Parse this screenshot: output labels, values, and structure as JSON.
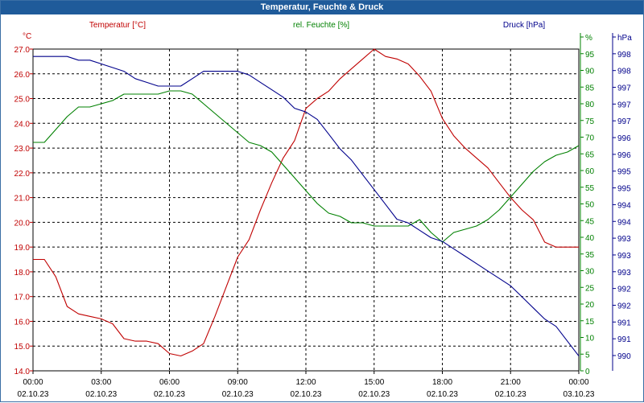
{
  "window": {
    "title": "Temperatur, Feuchte & Druck"
  },
  "colors": {
    "temperature": "#c00000",
    "humidity": "#008000",
    "pressure": "#00008b",
    "grid": "#000000",
    "title_bg": "#1f5b9a"
  },
  "chart_data": {
    "type": "line",
    "title": "Temperatur, Feuchte & Druck",
    "grid": true,
    "x_tick_times": [
      "00:00",
      "03:00",
      "06:00",
      "09:00",
      "12:00",
      "15:00",
      "18:00",
      "21:00",
      "00:00"
    ],
    "x_tick_dates": [
      "02.10.23",
      "02.10.23",
      "02.10.23",
      "02.10.23",
      "02.10.23",
      "02.10.23",
      "02.10.23",
      "02.10.23",
      "03.10.23"
    ],
    "x_range_hours": [
      0,
      24
    ],
    "axes": {
      "temperature": {
        "label": "Temperatur [°C]",
        "unit": "°C",
        "ylim": [
          14.0,
          27.0
        ],
        "ticks": [
          "14.0",
          "15.0",
          "16.0",
          "17.0",
          "18.0",
          "19.0",
          "20.0",
          "21.0",
          "22.0",
          "23.0",
          "24.0",
          "25.0",
          "26.0",
          "27.0"
        ]
      },
      "humidity": {
        "label": "rel. Feuchte [%]",
        "unit": "%",
        "ylim": [
          0,
          100
        ],
        "ticks": [
          "0",
          "5",
          "10",
          "15",
          "20",
          "25",
          "30",
          "35",
          "40",
          "45",
          "50",
          "55",
          "60",
          "65",
          "70",
          "75",
          "80",
          "85",
          "90",
          "95",
          "%"
        ]
      },
      "pressure": {
        "label": "Druck [hPa]",
        "unit": "hPa",
        "ylim": [
          989.5,
          998.2
        ],
        "ticks": [
          "990",
          "991",
          "991",
          "992",
          "992",
          "993",
          "993",
          "993",
          "994",
          "994",
          "995",
          "995",
          "996",
          "996",
          "997",
          "997",
          "997",
          "998",
          "998",
          "hPa"
        ]
      }
    },
    "series": [
      {
        "name": "Temperatur",
        "axis": "temperature",
        "x": [
          0,
          0.5,
          1,
          1.5,
          2,
          2.5,
          3,
          3.5,
          4,
          4.5,
          5,
          5.5,
          6,
          6.5,
          7,
          7.5,
          8,
          8.5,
          9,
          9.5,
          10,
          10.5,
          11,
          11.5,
          12,
          12.5,
          13,
          13.5,
          14,
          14.5,
          15,
          15.5,
          16,
          16.5,
          17,
          17.5,
          18,
          18.5,
          19,
          19.5,
          20,
          20.5,
          21,
          21.5,
          22,
          22.5,
          23,
          23.5,
          24
        ],
        "values": [
          18.5,
          18.5,
          17.8,
          16.6,
          16.3,
          16.2,
          16.1,
          15.9,
          15.3,
          15.2,
          15.2,
          15.1,
          14.7,
          14.6,
          14.8,
          15.1,
          16.2,
          17.4,
          18.6,
          19.3,
          20.5,
          21.6,
          22.6,
          23.3,
          24.6,
          25.0,
          25.3,
          25.8,
          26.2,
          26.6,
          27.0,
          26.7,
          26.6,
          26.4,
          25.9,
          25.3,
          24.2,
          23.5,
          23.0,
          22.6,
          22.2,
          21.6,
          21.0,
          20.5,
          20.1,
          19.2,
          19.0,
          19.0,
          19.0
        ]
      },
      {
        "name": "rel. Feuchte",
        "axis": "humidity",
        "x": [
          0,
          0.5,
          1,
          1.5,
          2,
          2.5,
          3,
          3.5,
          4,
          4.5,
          5,
          5.5,
          6,
          6.5,
          7,
          7.5,
          8,
          8.5,
          9,
          9.5,
          10,
          10.5,
          11,
          11.5,
          12,
          12.5,
          13,
          13.5,
          14,
          14.5,
          15,
          15.5,
          16,
          16.5,
          17,
          17.5,
          18,
          18.5,
          19,
          19.5,
          20,
          20.5,
          21,
          21.5,
          22,
          22.5,
          23,
          23.5,
          24
        ],
        "values": [
          71,
          71,
          75,
          79,
          82,
          82,
          83,
          84,
          86,
          86,
          86,
          86,
          87,
          87,
          86,
          83,
          80,
          77,
          74,
          71,
          70,
          68,
          64,
          60,
          56,
          52,
          49,
          48,
          46,
          46,
          45,
          45,
          45,
          45,
          47,
          43,
          40,
          43,
          44,
          45,
          47,
          50,
          54,
          58,
          62,
          65,
          67,
          68,
          70
        ]
      },
      {
        "name": "Druck",
        "axis": "pressure",
        "x": [
          0,
          0.5,
          1,
          1.5,
          2,
          2.5,
          3,
          3.5,
          4,
          4.5,
          5,
          5.5,
          6,
          6.5,
          7,
          7.5,
          8,
          8.5,
          9,
          9.5,
          10,
          10.5,
          11,
          11.5,
          12,
          12.5,
          13,
          13.5,
          14,
          14.5,
          15,
          15.5,
          16,
          16.5,
          17,
          17.5,
          18,
          18.5,
          19,
          19.5,
          20,
          20.5,
          21,
          21.5,
          22,
          22.5,
          23,
          23.5,
          24
        ],
        "values": [
          998.0,
          998.0,
          998.0,
          998.0,
          997.9,
          997.9,
          997.8,
          997.7,
          997.6,
          997.4,
          997.3,
          997.2,
          997.2,
          997.2,
          997.4,
          997.6,
          997.6,
          997.6,
          997.6,
          997.5,
          997.3,
          997.1,
          996.9,
          996.6,
          996.5,
          996.3,
          995.9,
          995.5,
          995.2,
          994.8,
          994.4,
          994.0,
          993.6,
          993.5,
          993.3,
          993.1,
          993.0,
          992.8,
          992.6,
          992.4,
          992.2,
          992.0,
          991.8,
          991.5,
          991.2,
          990.9,
          990.7,
          990.3,
          989.9
        ]
      }
    ]
  }
}
